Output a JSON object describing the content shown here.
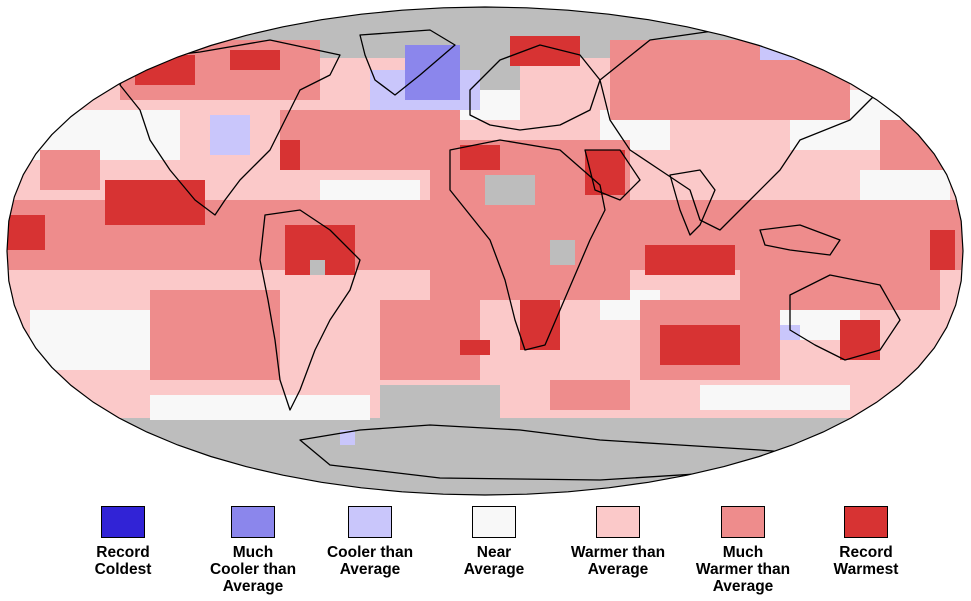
{
  "colors": {
    "record_coldest": "#3123d6",
    "much_cooler": "#8b86ec",
    "cooler": "#c9c6fb",
    "near": "#f8f8f8",
    "warmer": "#fbc9c9",
    "much_warmer": "#ee8c8c",
    "record_warmest": "#d73333",
    "no_data": "#bdbdbd",
    "coastline": "#000000"
  },
  "map": {
    "type": "global temperature percentiles",
    "projection": "robinson"
  },
  "legend": {
    "items": [
      {
        "key": "record_coldest",
        "label": "Record\nColdest"
      },
      {
        "key": "much_cooler",
        "label": "Much\nCooler than\nAverage"
      },
      {
        "key": "cooler",
        "label": "Cooler than\nAverage"
      },
      {
        "key": "near",
        "label": "Near\nAverage"
      },
      {
        "key": "warmer",
        "label": "Warmer than\nAverage"
      },
      {
        "key": "much_warmer",
        "label": "Much\nWarmer than\nAverage"
      },
      {
        "key": "record_warmest",
        "label": "Record\nWarmest"
      }
    ]
  }
}
